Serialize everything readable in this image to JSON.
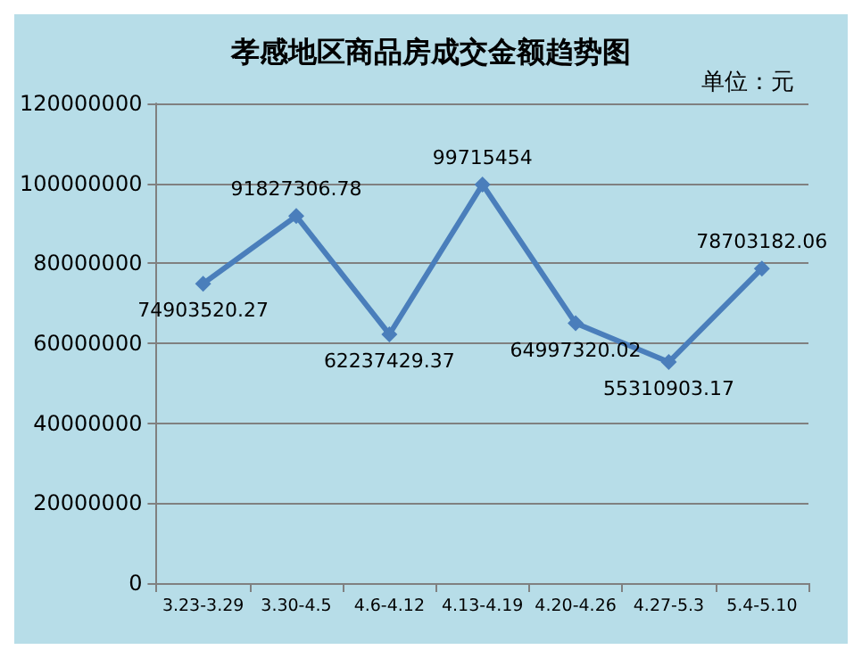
{
  "chart_data": {
    "type": "line",
    "title": "孝感地区商品房成交金额趋势图",
    "ylabel": "单位：元",
    "categories": [
      "3.23-3.29",
      "3.30-4.5",
      "4.6-4.12",
      "4.13-4.19",
      "4.20-4.26",
      "4.27-5.3",
      "5.4-5.10"
    ],
    "series": [
      {
        "color": "#4a7ebb",
        "values": [
          74903520.27,
          91827306.78,
          62237429.37,
          99715454,
          64997320.02,
          55310903.17,
          78703182.06
        ]
      }
    ],
    "value_labels": [
      "74903520.27",
      "91827306.78",
      "62237429.37",
      "99715454",
      "64997320.02",
      "55310903.17",
      "78703182.06"
    ],
    "ylim": [
      0,
      120000000
    ],
    "yticks": [
      0,
      20000000,
      40000000,
      60000000,
      80000000,
      100000000,
      120000000
    ],
    "grid": "y",
    "marker": "diamond",
    "line_style": "solid"
  }
}
